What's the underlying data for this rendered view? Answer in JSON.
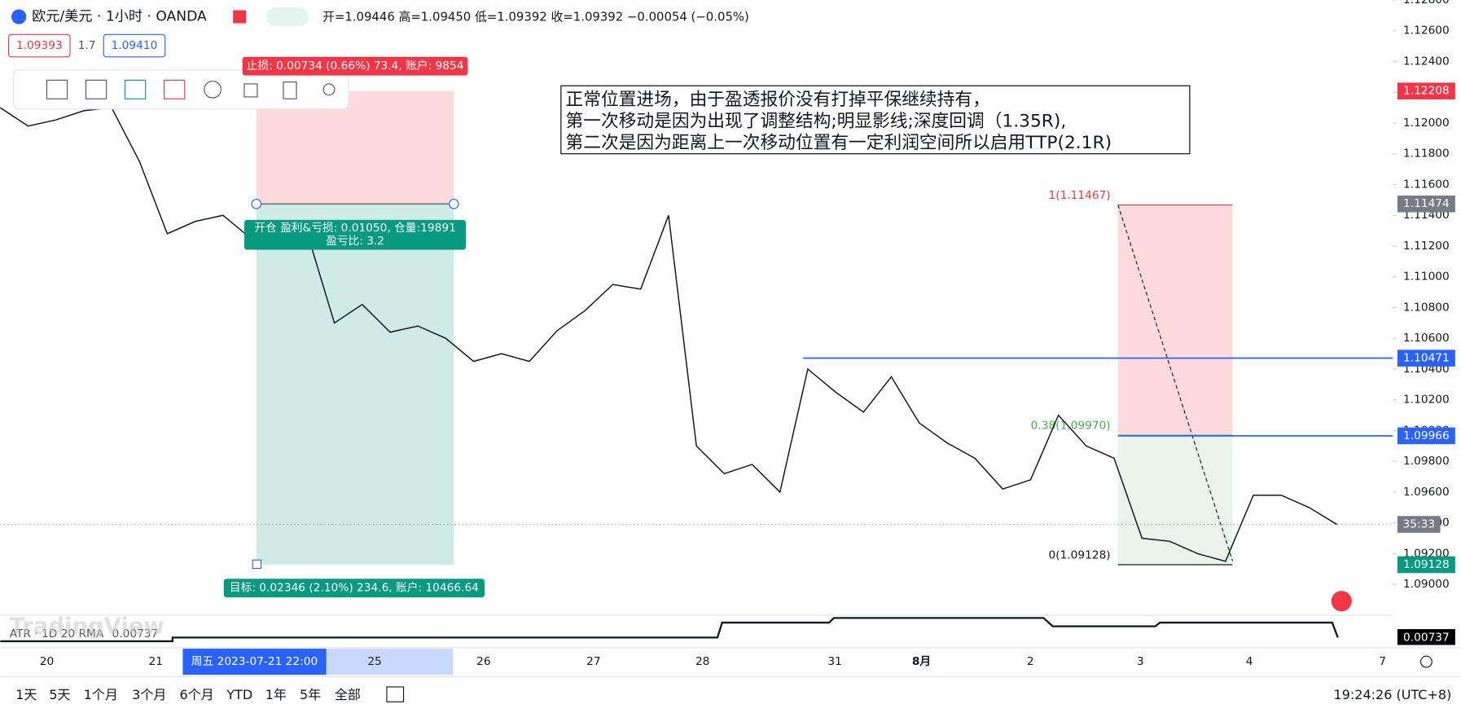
{
  "header": {
    "symbol": "欧元/美元 · 1小时 · OANDA",
    "ohlc": "开=1.09446 高=1.09450 低=1.09392 收=1.09392 −0.00054 (−0.05%)",
    "bid": "1.09393",
    "spread": "1.7",
    "ask": "1.09410"
  },
  "note": {
    "lines": [
      "正常位置进场，由于盈透报价没有打掉平保继续持有，",
      "第一次移动是因为出现了调整结构;明显影线;深度回调（1.35R),",
      "第二次是因为距离上一次移动位置有一定利润空间所以启用TTP(2.1R)"
    ]
  },
  "position": {
    "stop_label": "止损: 0.00734 (0.66%) 73.4, 账户: 9854",
    "open_label": "开仓 盈利&亏损: 0.01050, 仓量:19891",
    "ratio_label": "盈亏比: 3.2",
    "target_label": "目标: 0.02346 (2.10%) 234.6, 账户: 10466.64"
  },
  "fib": {
    "levels": [
      {
        "value": 1.11467,
        "label": "1(1.11467)"
      },
      {
        "value": 1.0997,
        "label": "0.38(1.09970)"
      },
      {
        "value": 1.09128,
        "label": "0(1.09128)"
      }
    ]
  },
  "chart_data": {
    "type": "line",
    "color": "#131722",
    "values": [
      1.121,
      1.1198,
      1.1202,
      1.1208,
      1.121,
      1.1175,
      1.1128,
      1.1136,
      1.114,
      1.1125,
      1.113,
      1.113,
      1.107,
      1.1082,
      1.1064,
      1.1068,
      1.106,
      1.1045,
      1.105,
      1.1045,
      1.1065,
      1.1078,
      1.1095,
      1.1092,
      1.114,
      1.099,
      1.0972,
      1.0978,
      1.096,
      1.104,
      1.1025,
      1.1012,
      1.1035,
      1.1005,
      1.0992,
      1.0982,
      1.0962,
      1.0968,
      1.101,
      1.099,
      1.0982,
      1.093,
      1.0928,
      1.092,
      1.0915,
      1.0958,
      1.0958,
      1.095,
      1.0939
    ],
    "ylim": [
      1.088,
      1.128
    ],
    "yticks": [
      {
        "value": 1.128,
        "label": "1.12800"
      },
      {
        "value": 1.126,
        "label": "1.12600"
      },
      {
        "value": 1.124,
        "label": "1.12400"
      },
      {
        "value": 1.122,
        "label": "1.12200"
      },
      {
        "value": 1.12,
        "label": "1.12000"
      },
      {
        "value": 1.118,
        "label": "1.11800"
      },
      {
        "value": 1.116,
        "label": "1.11600"
      },
      {
        "value": 1.114,
        "label": "1.11400"
      },
      {
        "value": 1.112,
        "label": "1.11200"
      },
      {
        "value": 1.11,
        "label": "1.11000"
      },
      {
        "value": 1.108,
        "label": "1.10800"
      },
      {
        "value": 1.106,
        "label": "1.10600"
      },
      {
        "value": 1.104,
        "label": "1.10400"
      },
      {
        "value": 1.102,
        "label": "1.10200"
      },
      {
        "value": 1.1,
        "label": "1.10000"
      },
      {
        "value": 1.098,
        "label": "1.09800"
      },
      {
        "value": 1.096,
        "label": "1.09600"
      },
      {
        "value": 1.094,
        "label": "1.09400"
      },
      {
        "value": 1.092,
        "label": "1.09200"
      },
      {
        "value": 1.09,
        "label": "1.09000"
      }
    ],
    "badges": [
      {
        "value": 1.12208,
        "label": "1.12208",
        "color": "#f23645"
      },
      {
        "value": 1.11474,
        "label": "1.11474",
        "color": "#787b86"
      },
      {
        "value": 1.10471,
        "label": "1.10471",
        "color": "#2962ff"
      },
      {
        "value": 1.09966,
        "label": "1.09966",
        "color": "#2962ff"
      },
      {
        "value": 1.09128,
        "label": "1.09128",
        "color": "#089981"
      }
    ],
    "countdown": "35:33"
  },
  "time_axis": {
    "labels": [
      "20",
      "21",
      "25",
      "26",
      "27",
      "28",
      "31",
      "8月",
      "2",
      "3",
      "4",
      "7"
    ],
    "cursor": "周五 2023-07-21   22:00"
  },
  "atr": {
    "label": "ATR · 1D 20 RMA",
    "value": "0.00737"
  },
  "watermark": "TradingView",
  "ranges": [
    "1天",
    "5天",
    "1个月",
    "3个月",
    "6个月",
    "YTD",
    "1年",
    "5年",
    "全部"
  ],
  "clock": "19:24:26 (UTC+8)"
}
